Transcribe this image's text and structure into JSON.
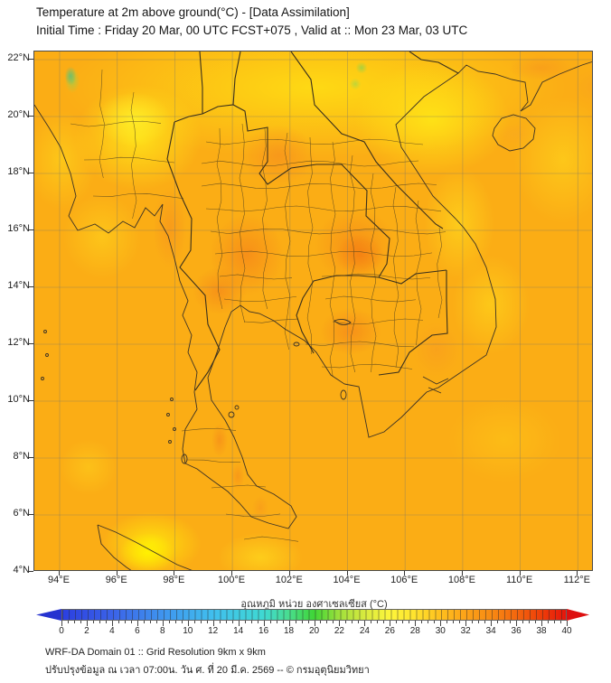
{
  "header": {
    "title": "Temperature at 2m above ground(°C) - [Data Assimilation]",
    "subtitle": "Initial Time : Friday 20 Mar, 00 UTC FCST+075 , Valid at :: Mon 23 Mar, 03 UTC"
  },
  "map": {
    "lat_labels": [
      "22°N",
      "20°N",
      "18°N",
      "16°N",
      "14°N",
      "12°N",
      "10°N",
      "8°N",
      "6°N",
      "4°N"
    ],
    "lon_labels": [
      "94°E",
      "96°E",
      "98°E",
      "100°E",
      "102°E",
      "104°E",
      "106°E",
      "108°E",
      "110°E",
      "112°E"
    ]
  },
  "colorbar": {
    "label": "อุณหภูมิ หน่วย องศาเซลเซียส (°C)",
    "ticks": [
      0,
      2,
      4,
      6,
      8,
      10,
      12,
      14,
      16,
      18,
      20,
      22,
      24,
      26,
      28,
      30,
      32,
      34,
      36,
      38,
      40
    ],
    "unit_min": 0,
    "unit_max": 40,
    "stops": [
      {
        "v": 0,
        "c": "#2b3fe0"
      },
      {
        "v": 4,
        "c": "#3b63e8"
      },
      {
        "v": 8,
        "c": "#3f95ef"
      },
      {
        "v": 12,
        "c": "#40bfee"
      },
      {
        "v": 16,
        "c": "#3fd9d2"
      },
      {
        "v": 18,
        "c": "#49dd8e"
      },
      {
        "v": 20,
        "c": "#3fd636"
      },
      {
        "v": 22,
        "c": "#9fe03c"
      },
      {
        "v": 24,
        "c": "#d8ea3e"
      },
      {
        "v": 26,
        "c": "#fdf53b"
      },
      {
        "v": 28,
        "c": "#ffe32e"
      },
      {
        "v": 30,
        "c": "#ffc01e"
      },
      {
        "v": 32,
        "c": "#fca318"
      },
      {
        "v": 34,
        "c": "#f88b13"
      },
      {
        "v": 36,
        "c": "#f4680e"
      },
      {
        "v": 38,
        "c": "#ee3f09"
      },
      {
        "v": 40,
        "c": "#e7150b"
      }
    ],
    "left_arrow_color": "#2633d0",
    "right_arrow_color": "#dd0f0f"
  },
  "footer": {
    "line1": "WRF-DA Domain 01 :: Grid Resolution 9km x 9km",
    "line2": "ปรับปรุงข้อมูล ณ เวลา 07:00น. วัน ศ. ที่ 20 มี.ค. 2569 -- © กรมอุตุนิยมวิทยา"
  }
}
